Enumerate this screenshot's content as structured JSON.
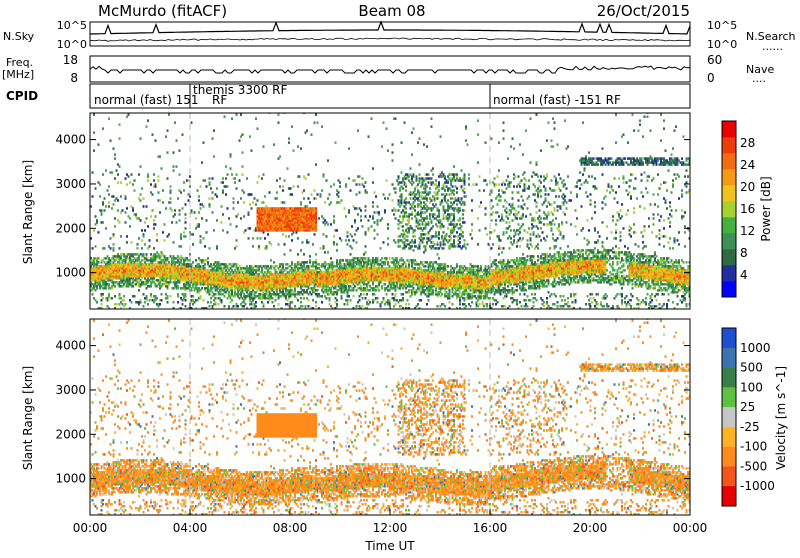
{
  "header": {
    "station": "McMurdo (fitACF)",
    "beam": "Beam 08",
    "date": "26/Oct/2015"
  },
  "noise_panel": {
    "left_label": "N.Sky",
    "right_label": "N.Search",
    "right_label_dots": "......",
    "left_ticks": [
      "10^5",
      "10^0"
    ],
    "right_ticks": [
      "10^5",
      "10^0"
    ]
  },
  "freq_panel": {
    "left_label_1": "Freq.",
    "left_label_2": "[MHz]",
    "right_label": "Nave",
    "right_label_dots": "....",
    "left_ticks": [
      "18",
      "8"
    ],
    "right_ticks": [
      "60",
      "0"
    ]
  },
  "cpid": {
    "label": "CPID",
    "segments": [
      "normal (fast) 151",
      "themis 3300 RF",
      "normal (fast) -151 RF"
    ],
    "overlay": "RF"
  },
  "colors": {
    "power_scale": [
      "#0000ff",
      "#1f2f9f",
      "#2e6a44",
      "#3c8f55",
      "#44b13f",
      "#a6d12f",
      "#f0c21c",
      "#f59a16",
      "#f26d10",
      "#ee3c0b",
      "#e80000"
    ],
    "velocity_scale": [
      "#1d4fcf",
      "#3a73b0",
      "#3a7f4a",
      "#5fc140",
      "#c6c6c6",
      "#ffb226",
      "#ff8c1a",
      "#f2561a",
      "#e80000"
    ]
  },
  "chart_data": [
    {
      "type": "heatmap",
      "title": "Power",
      "ylabel": "Slant Range [km]",
      "ylim": [
        180,
        4600
      ],
      "yticks": [
        "1000",
        "2000",
        "3000",
        "4000"
      ],
      "xlim": [
        0,
        24
      ],
      "colorbar": {
        "label": "Power [dB]",
        "ticks": [
          "4",
          "8",
          "12",
          "16",
          "20",
          "24",
          "28"
        ],
        "range": [
          0,
          32
        ]
      },
      "features": [
        {
          "name": "main band",
          "range_km": [
            750,
            1200
          ],
          "power_db": 22
        },
        {
          "name": "upper patch",
          "t_hr": [
            7,
            9
          ],
          "range_km": [
            1900,
            2400
          ],
          "power_db": 28
        },
        {
          "name": "far range",
          "t_hr": [
            19.5,
            24
          ],
          "range_km": [
            3400,
            3550
          ],
          "power_db": 6
        }
      ]
    },
    {
      "type": "heatmap",
      "title": "Velocity",
      "ylabel": "Slant Range [km]",
      "xlabel": "Time UT",
      "ylim": [
        180,
        4600
      ],
      "yticks": [
        "1000",
        "2000",
        "3000",
        "4000"
      ],
      "xticks": [
        "00:00",
        "04:00",
        "08:00",
        "12:00",
        "16:00",
        "20:00",
        "00:00"
      ],
      "xlim": [
        0,
        24
      ],
      "colorbar": {
        "label": "Velocity [m s^-1]",
        "ticks": [
          "1000",
          "500",
          "100",
          "25",
          "-25",
          "-100",
          "-500",
          "-1000"
        ]
      },
      "features": [
        {
          "name": "main band",
          "range_km": [
            700,
            1300
          ],
          "velocity": -150
        },
        {
          "name": "upper patch",
          "t_hr": [
            7,
            9
          ],
          "range_km": [
            1900,
            2400
          ],
          "velocity": -200
        }
      ]
    }
  ]
}
